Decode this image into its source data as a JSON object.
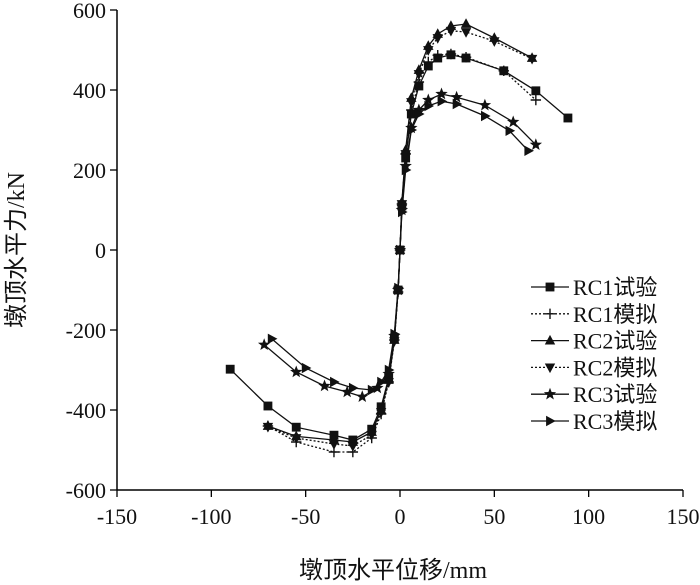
{
  "chart_data": {
    "type": "line",
    "xlabel": "墩顶水平位移/mm",
    "ylabel": "墩顶水平力/kN",
    "xlim": [
      -150,
      150
    ],
    "ylim": [
      -600,
      600
    ],
    "xticks": [
      -150,
      -100,
      -50,
      0,
      50,
      100,
      150
    ],
    "yticks": [
      -600,
      -400,
      -200,
      0,
      200,
      400,
      600
    ],
    "grid": false,
    "legend_position": "right",
    "series": [
      {
        "name": "RC1试验",
        "marker": "square",
        "dash": "solid",
        "points": [
          [
            -90,
            -298
          ],
          [
            -70,
            -390
          ],
          [
            -55,
            -443
          ],
          [
            -35,
            -463
          ],
          [
            -25,
            -475
          ],
          [
            -15,
            -448
          ],
          [
            -10,
            -392
          ],
          [
            -6,
            -320
          ],
          [
            -3,
            -220
          ],
          [
            -1,
            -100
          ],
          [
            0,
            0
          ],
          [
            1,
            110
          ],
          [
            3,
            230
          ],
          [
            6,
            340
          ],
          [
            10,
            410
          ],
          [
            15,
            460
          ],
          [
            20,
            480
          ],
          [
            27,
            488
          ],
          [
            35,
            480
          ],
          [
            55,
            448
          ],
          [
            72,
            398
          ],
          [
            89,
            330
          ]
        ]
      },
      {
        "name": "RC1模拟",
        "marker": "plus",
        "dash": "dotted",
        "points": [
          [
            -70,
            -440
          ],
          [
            -55,
            -480
          ],
          [
            -35,
            -505
          ],
          [
            -25,
            -505
          ],
          [
            -15,
            -470
          ],
          [
            -10,
            -410
          ],
          [
            -6,
            -330
          ],
          [
            -3,
            -225
          ],
          [
            -1,
            -105
          ],
          [
            0,
            0
          ],
          [
            1,
            115
          ],
          [
            3,
            240
          ],
          [
            6,
            350
          ],
          [
            10,
            420
          ],
          [
            15,
            470
          ],
          [
            20,
            487
          ],
          [
            27,
            490
          ],
          [
            35,
            482
          ],
          [
            55,
            448
          ],
          [
            72,
            375
          ]
        ]
      },
      {
        "name": "RC2试验",
        "marker": "triangle-up",
        "dash": "solid",
        "points": [
          [
            -70,
            -440
          ],
          [
            -55,
            -466
          ],
          [
            -35,
            -475
          ],
          [
            -25,
            -480
          ],
          [
            -15,
            -455
          ],
          [
            -10,
            -400
          ],
          [
            -6,
            -325
          ],
          [
            -3,
            -225
          ],
          [
            -1,
            -100
          ],
          [
            0,
            0
          ],
          [
            1,
            120
          ],
          [
            3,
            250
          ],
          [
            6,
            380
          ],
          [
            10,
            450
          ],
          [
            15,
            510
          ],
          [
            20,
            540
          ],
          [
            27,
            560
          ],
          [
            35,
            565
          ],
          [
            50,
            530
          ],
          [
            70,
            480
          ]
        ]
      },
      {
        "name": "RC2模拟",
        "marker": "triangle-down",
        "dash": "dotted",
        "points": [
          [
            -70,
            -442
          ],
          [
            -55,
            -470
          ],
          [
            -35,
            -485
          ],
          [
            -25,
            -490
          ],
          [
            -15,
            -462
          ],
          [
            -10,
            -405
          ],
          [
            -6,
            -330
          ],
          [
            -3,
            -228
          ],
          [
            -1,
            -102
          ],
          [
            0,
            0
          ],
          [
            1,
            115
          ],
          [
            3,
            240
          ],
          [
            6,
            370
          ],
          [
            10,
            440
          ],
          [
            15,
            500
          ],
          [
            20,
            530
          ],
          [
            27,
            548
          ],
          [
            35,
            545
          ],
          [
            50,
            522
          ],
          [
            70,
            478
          ]
        ]
      },
      {
        "name": "RC3试验",
        "marker": "star",
        "dash": "solid",
        "points": [
          [
            -72,
            -237
          ],
          [
            -55,
            -305
          ],
          [
            -40,
            -340
          ],
          [
            -28,
            -355
          ],
          [
            -20,
            -367
          ],
          [
            -12,
            -345
          ],
          [
            -6,
            -310
          ],
          [
            -3,
            -215
          ],
          [
            -1,
            -100
          ],
          [
            0,
            0
          ],
          [
            1,
            100
          ],
          [
            3,
            210
          ],
          [
            6,
            305
          ],
          [
            10,
            350
          ],
          [
            15,
            375
          ],
          [
            22,
            390
          ],
          [
            30,
            382
          ],
          [
            45,
            362
          ],
          [
            60,
            320
          ],
          [
            72,
            263
          ]
        ]
      },
      {
        "name": "RC3模拟",
        "marker": "triangle-right",
        "dash": "solid",
        "points": [
          [
            -68,
            -222
          ],
          [
            -50,
            -295
          ],
          [
            -35,
            -330
          ],
          [
            -25,
            -345
          ],
          [
            -15,
            -350
          ],
          [
            -10,
            -330
          ],
          [
            -6,
            -300
          ],
          [
            -3,
            -210
          ],
          [
            -1,
            -95
          ],
          [
            0,
            0
          ],
          [
            1,
            95
          ],
          [
            3,
            200
          ],
          [
            6,
            300
          ],
          [
            10,
            340
          ],
          [
            15,
            360
          ],
          [
            22,
            372
          ],
          [
            30,
            365
          ],
          [
            45,
            335
          ],
          [
            58,
            298
          ],
          [
            68,
            248
          ]
        ]
      }
    ]
  }
}
